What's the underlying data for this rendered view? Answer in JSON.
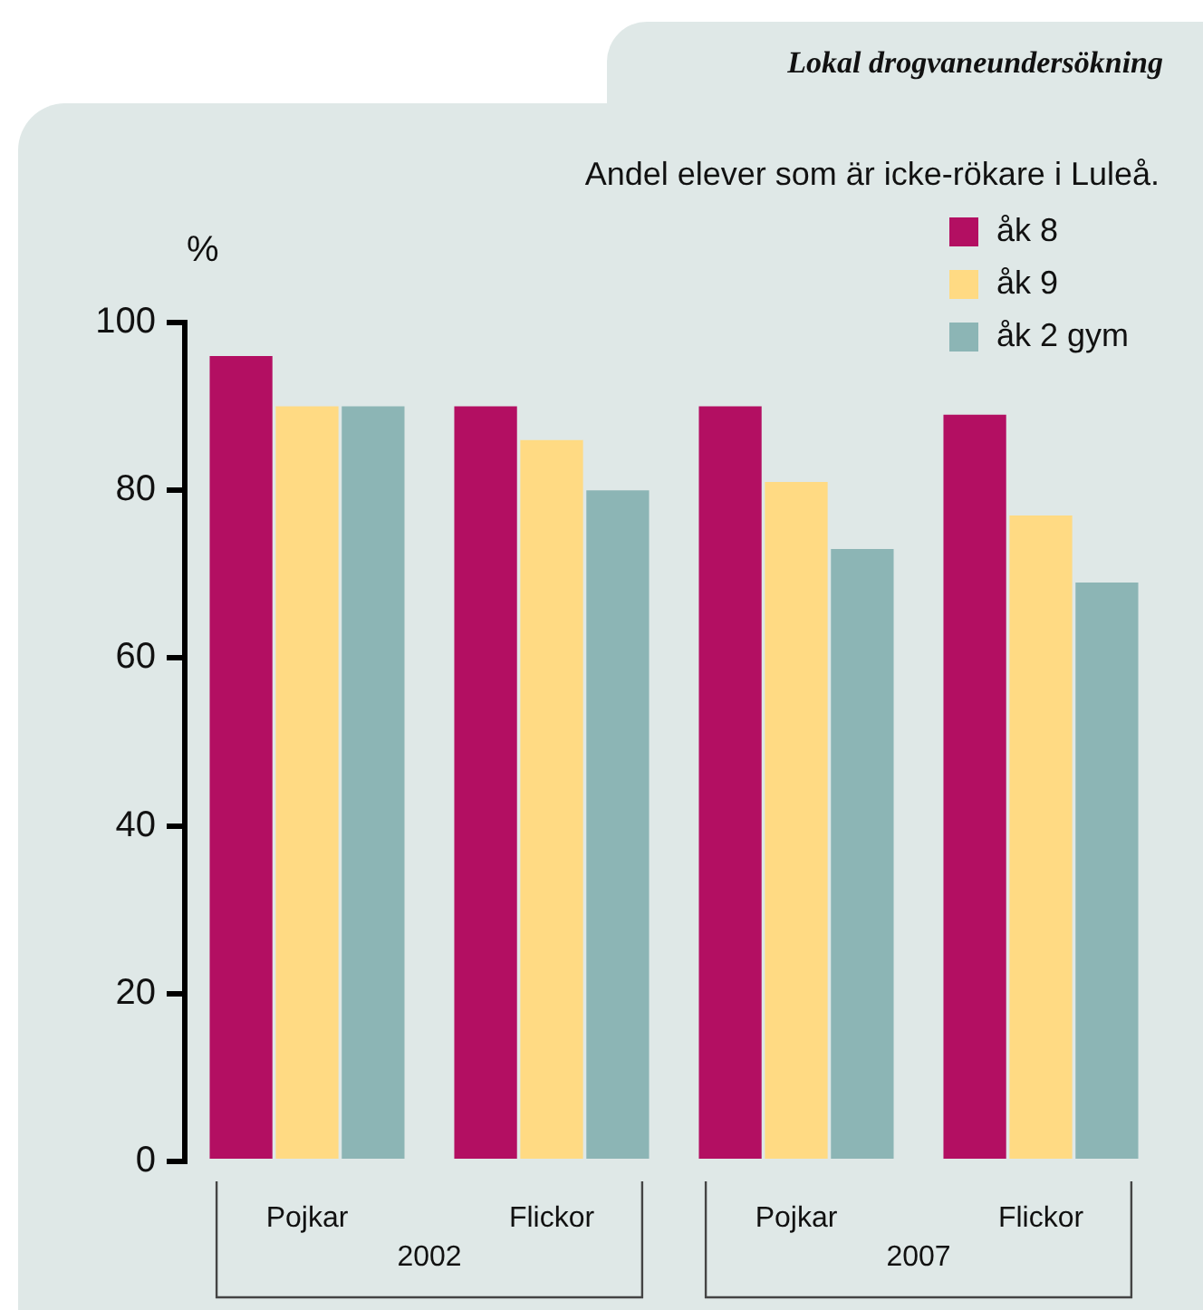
{
  "chart_data": {
    "type": "bar",
    "title": "Lokal drogvaneundersökning",
    "subtitle": "Andel elever som är icke-rökare i Luleå.",
    "ylabel": "%",
    "categories": [
      "Pojkar",
      "Flickor",
      "Pojkar",
      "Flickor"
    ],
    "series": [
      {
        "name": "åk 8",
        "color": "#b30f62",
        "values": [
          96,
          90,
          90,
          89
        ]
      },
      {
        "name": "åk 9",
        "color": "#ffda83",
        "values": [
          90,
          86,
          81,
          77
        ]
      },
      {
        "name": "åk 2 gym",
        "color": "#8cb5b5",
        "values": [
          90,
          80,
          73,
          69
        ]
      }
    ],
    "annotations": [
      "2002",
      "2007"
    ],
    "ylim": [
      0,
      100
    ],
    "yticks": [
      0,
      20,
      40,
      60,
      80,
      100
    ],
    "grid": false,
    "legend": "top right"
  }
}
